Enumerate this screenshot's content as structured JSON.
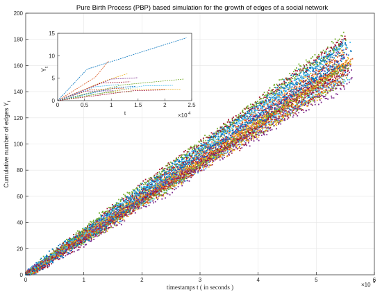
{
  "chart_data": [
    {
      "type": "scatter",
      "title": "Pure Birth Process (PBP) based simulation for the growth of edges of a social network",
      "xlabel": "timestamps t ( in seconds )",
      "ylabel": "Cumulative number of edges Y",
      "ylabel_subscript": "t",
      "xlim": [
        0,
        6
      ],
      "ylim": [
        0,
        200
      ],
      "x_exponent_label": "×10",
      "x_exponent_power": "5",
      "xticks": [
        "0",
        "1",
        "2",
        "3",
        "4",
        "5",
        "6"
      ],
      "yticks": [
        "0",
        "20",
        "40",
        "60",
        "80",
        "100",
        "120",
        "140",
        "160",
        "180",
        "200"
      ],
      "grid": true,
      "description_of_series": "many overlapping stochastic realisations, each roughly linear",
      "series_colors": [
        "#0072bd",
        "#d95319",
        "#edb120",
        "#7e2f8e",
        "#77ac30",
        "#4dbeee",
        "#a2142f"
      ],
      "realization_count": 50,
      "points_per_realization": 180,
      "slope_mean": 30,
      "slope_spread": 3.5,
      "end_x_range": [
        5.4,
        5.65
      ]
    },
    {
      "type": "line",
      "title": "",
      "xlabel": "t",
      "ylabel": "Y",
      "ylabel_subscript": "t",
      "xlim": [
        0,
        2.5
      ],
      "ylim": [
        0,
        15
      ],
      "x_exponent_label": "×10",
      "x_exponent_power": "4",
      "xticks": [
        "0",
        "0.5",
        "1",
        "1.5",
        "2",
        "2.5"
      ],
      "yticks": [
        "0",
        "5",
        "10",
        "15"
      ],
      "grid": false,
      "series": [
        {
          "x": [
            0,
            0.55,
            2.4
          ],
          "y": [
            0,
            7,
            14
          ]
        },
        {
          "x": [
            0,
            0.7,
            0.95
          ],
          "y": [
            0,
            5.2,
            8.8
          ]
        },
        {
          "x": [
            0,
            0.9,
            1.3
          ],
          "y": [
            0,
            4.5,
            6
          ]
        },
        {
          "x": [
            0,
            1.0,
            1.5
          ],
          "y": [
            0,
            4.8,
            5.1
          ]
        },
        {
          "x": [
            0,
            1.2,
            2.35
          ],
          "y": [
            0,
            3.5,
            4.8
          ]
        },
        {
          "x": [
            0,
            1.6,
            2.15
          ],
          "y": [
            0,
            3.3,
            3.4
          ]
        },
        {
          "x": [
            0,
            0.8,
            1.35
          ],
          "y": [
            0,
            3.9,
            4.2
          ]
        },
        {
          "x": [
            0,
            1.1,
            1.45
          ],
          "y": [
            0,
            2.9,
            3.2
          ]
        },
        {
          "x": [
            0,
            0.6,
            1.25
          ],
          "y": [
            0,
            2.4,
            2.8
          ]
        },
        {
          "x": [
            0,
            1.3,
            2.3
          ],
          "y": [
            0,
            2.6,
            2.5
          ]
        },
        {
          "x": [
            0,
            0.5,
            1.05
          ],
          "y": [
            0,
            2.1,
            2.2
          ]
        },
        {
          "x": [
            0,
            0.9,
            1.4
          ],
          "y": [
            0,
            1.8,
            2.0
          ]
        },
        {
          "x": [
            0,
            0.7,
            1.15
          ],
          "y": [
            0,
            3.1,
            3.6
          ]
        },
        {
          "x": [
            0,
            1.4,
            2.0
          ],
          "y": [
            0,
            2.2,
            2.4
          ]
        }
      ]
    }
  ]
}
